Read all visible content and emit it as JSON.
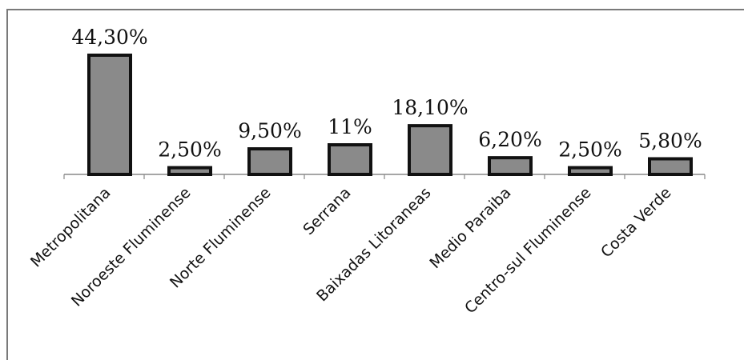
{
  "chart_data": {
    "type": "bar",
    "categories": [
      "Metropolitana",
      "Noroeste Fluminense",
      "Norte Fluminense",
      "Serrana",
      "Baixadas Litoraneas",
      "Medio Paraiba",
      "Centro-sul Fluminense",
      "Costa Verde"
    ],
    "values": [
      44.3,
      2.5,
      9.5,
      11,
      18.1,
      6.2,
      2.5,
      5.8
    ],
    "data_labels": [
      "44,30%",
      "2,50%",
      "9,50%",
      "11%",
      "18,10%",
      "6,20%",
      "2,50%",
      "5,80%"
    ],
    "title": "",
    "xlabel": "",
    "ylabel": "",
    "ylim": [
      0,
      45
    ],
    "grid": false,
    "legend": "none",
    "colors": {
      "bar_fill": "#8a8a8a",
      "bar_stroke": "#111111",
      "axis": "#888888",
      "frame": "#7a7a7a"
    }
  }
}
